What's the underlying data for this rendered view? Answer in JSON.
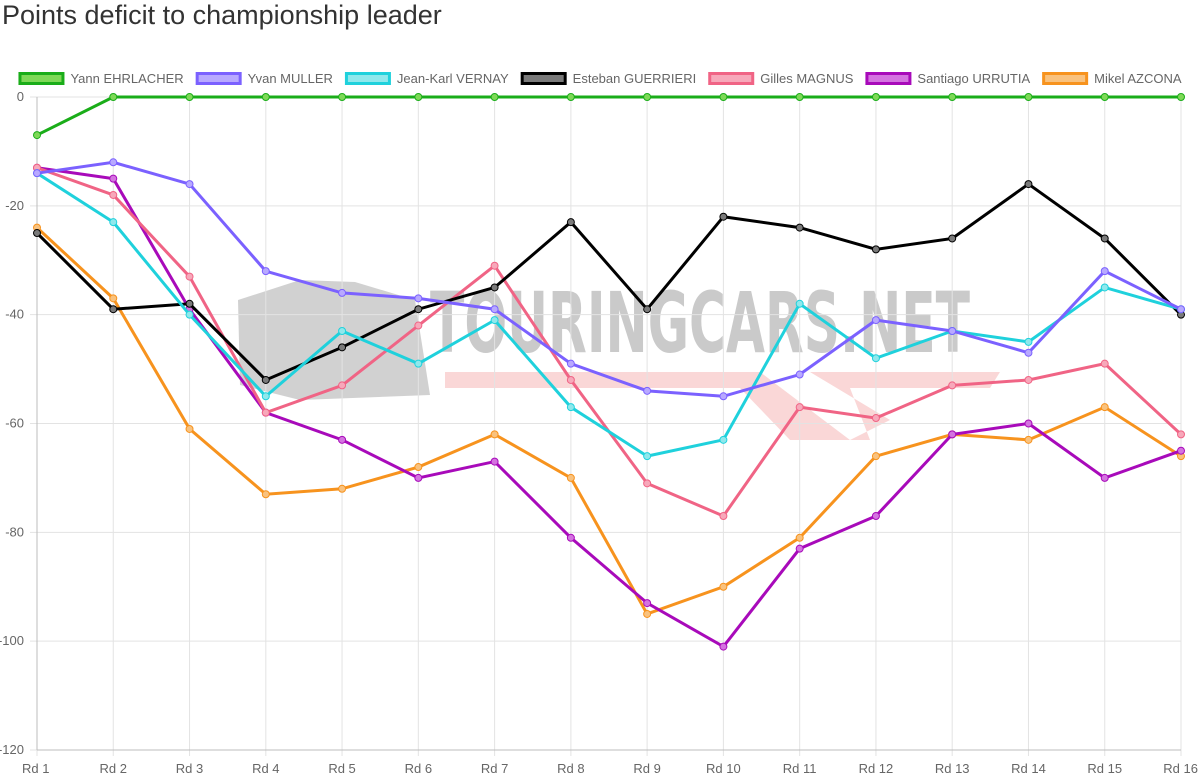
{
  "chart_data": {
    "type": "line",
    "title": "Points deficit to championship leader",
    "xlabel": "",
    "ylabel": "",
    "ylim": [
      -120,
      0
    ],
    "ytick_step": 20,
    "ytick_labels": [
      "0",
      "-20",
      "-40",
      "-60",
      "-80",
      "-100",
      "-120"
    ],
    "grid": true,
    "legend_position": "top",
    "watermark": "TOURINGCARS.NET",
    "categories": [
      "Rd 1",
      "Rd 2",
      "Rd 3",
      "Rd 4",
      "Rd 5",
      "Rd 6",
      "Rd 7",
      "Rd 8",
      "Rd 9",
      "Rd 10",
      "Rd 11",
      "Rd 12",
      "Rd 13",
      "Rd 14",
      "Rd 15",
      "Rd 16"
    ],
    "series": [
      {
        "name": "Yann EHRLACHER",
        "color": "#1aad19",
        "fill": "#7ed957",
        "values": [
          -7,
          0,
          0,
          0,
          0,
          0,
          0,
          0,
          0,
          0,
          0,
          0,
          0,
          0,
          0,
          0
        ]
      },
      {
        "name": "Yvan MULLER",
        "color": "#7b61ff",
        "fill": "#b8a9ff",
        "values": [
          -14,
          -12,
          -16,
          -32,
          -36,
          -37,
          -39,
          -49,
          -54,
          -55,
          -51,
          -41,
          -43,
          -47,
          -32,
          -39
        ]
      },
      {
        "name": "Jean-Karl VERNAY",
        "color": "#1fd1dc",
        "fill": "#8fe8ec",
        "values": [
          -14,
          -23,
          -40,
          -55,
          -43,
          -49,
          -41,
          -57,
          -66,
          -63,
          -38,
          -48,
          -43,
          -45,
          -35,
          -39
        ]
      },
      {
        "name": "Esteban GUERRIERI",
        "color": "#000000",
        "fill": "#7a7a7a",
        "values": [
          -25,
          -39,
          -38,
          -52,
          -46,
          -39,
          -35,
          -23,
          -39,
          -22,
          -24,
          -28,
          -26,
          -16,
          -26,
          -40
        ]
      },
      {
        "name": "Gilles MAGNUS",
        "color": "#f06485",
        "fill": "#f7a8ba",
        "values": [
          -13,
          -18,
          -33,
          -58,
          -53,
          -42,
          -31,
          -52,
          -71,
          -77,
          -57,
          -59,
          -53,
          -52,
          -49,
          -62
        ]
      },
      {
        "name": "Santiago URRUTIA",
        "color": "#a80aba",
        "fill": "#d473e0",
        "values": [
          -13,
          -15,
          -39,
          -58,
          -63,
          -70,
          -67,
          -81,
          -93,
          -101,
          -83,
          -77,
          -62,
          -60,
          -70,
          -65
        ]
      },
      {
        "name": "Mikel AZCONA",
        "color": "#f7931e",
        "fill": "#f9c27e",
        "values": [
          -24,
          -37,
          -61,
          -73,
          -72,
          -68,
          -62,
          -70,
          -95,
          -90,
          -81,
          -66,
          -62,
          -63,
          -57,
          -66
        ]
      }
    ]
  }
}
